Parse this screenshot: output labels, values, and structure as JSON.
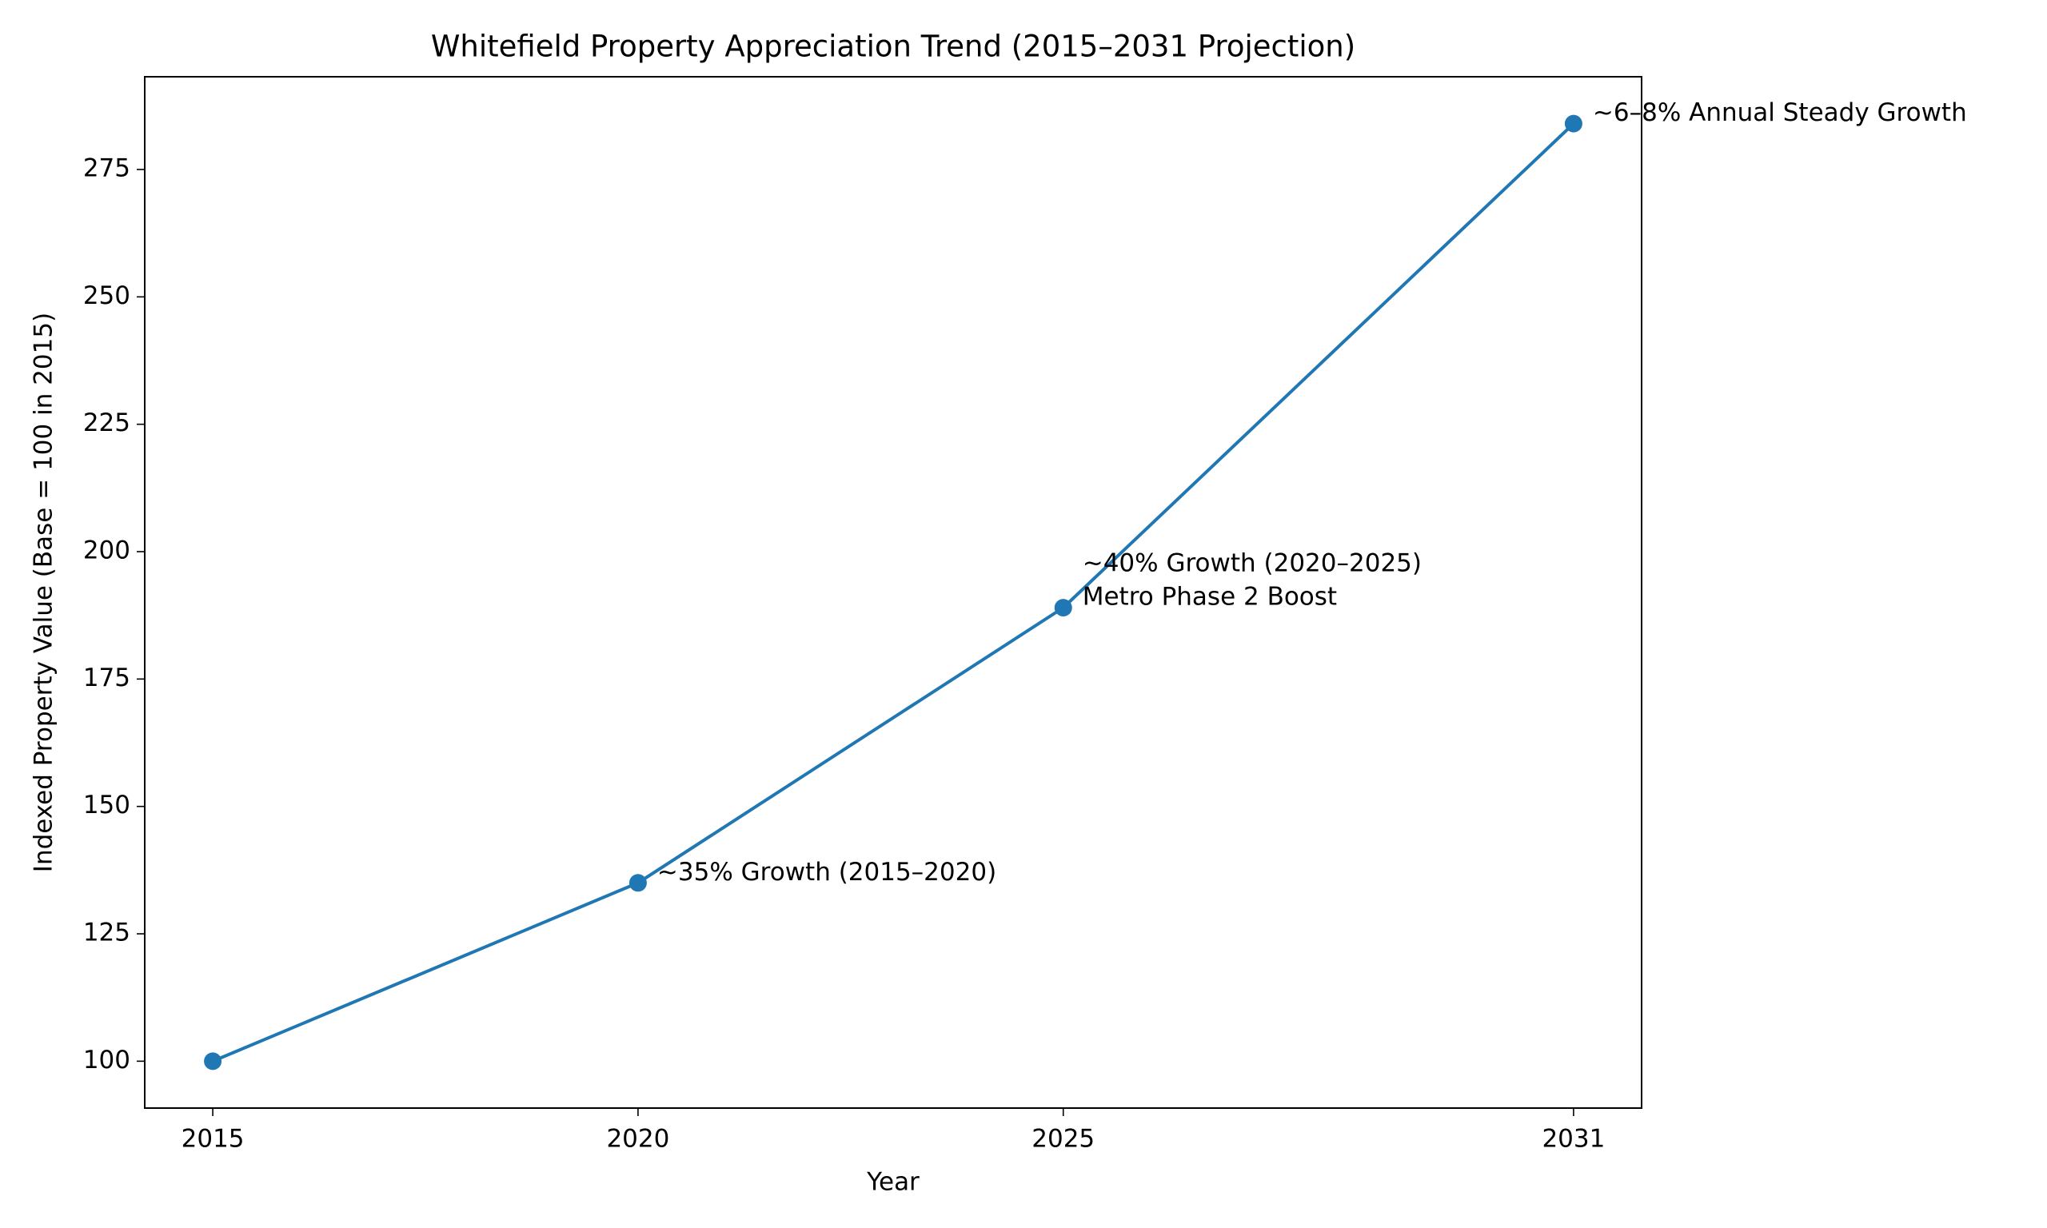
{
  "chart_data": {
    "type": "line",
    "title": "Whitefield Property Appreciation Trend (2015–2031 Projection)",
    "x_label": "Year",
    "y_label": "Indexed Property Value (Base = 100 in 2015)",
    "x": [
      2015,
      2020,
      2025,
      2031
    ],
    "series": [
      {
        "name": "Indexed Property Value",
        "color": "#1f77b4",
        "values": [
          100,
          135,
          189,
          284
        ]
      }
    ],
    "point_labels": [
      null,
      [
        "~35% Growth (2015–2020)"
      ],
      [
        "~40% Growth (2020–2025)",
        "Metro Phase 2 Boost"
      ],
      [
        "~6–8% Annual Steady Growth"
      ]
    ],
    "xlim": [
      2014.2,
      2031.8
    ],
    "ylim": [
      90.8,
      293.2
    ],
    "xticks": [
      2015,
      2020,
      2025,
      2031
    ],
    "yticks": [
      100,
      125,
      150,
      175,
      200,
      225,
      250,
      275
    ],
    "grid": false
  }
}
